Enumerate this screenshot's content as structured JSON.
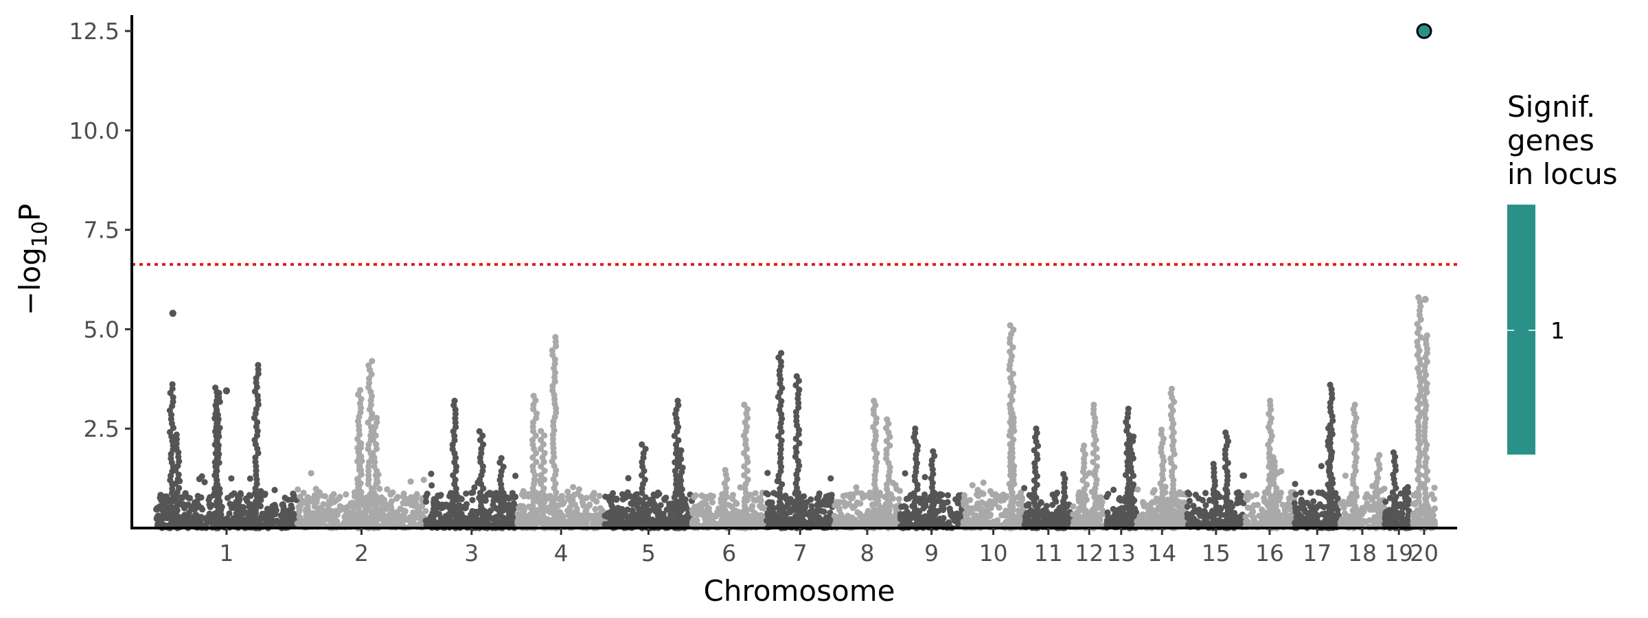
{
  "chart_data": {
    "type": "scatter",
    "subtype": "manhattan",
    "xlabel": "Chromosome",
    "ylabel": {
      "prefix": "−log",
      "subscript": "10",
      "suffix": "P"
    },
    "ylim": [
      0,
      12.9
    ],
    "y_ticks": [
      {
        "value": 2.5,
        "label": "2.5"
      },
      {
        "value": 5.0,
        "label": "5.0"
      },
      {
        "value": 7.5,
        "label": "7.5"
      },
      {
        "value": 10.0,
        "label": "10.0"
      },
      {
        "value": 12.5,
        "label": "12.5"
      }
    ],
    "significance_threshold": 6.63,
    "threshold_style": "dotted",
    "colors": {
      "dark": "#555555",
      "light": "#a9a9a9",
      "threshold": "#e41a1c",
      "highlight": "#2a9188",
      "axis": "#000000"
    },
    "chromosomes": [
      {
        "label": "1",
        "peak": 4.1,
        "color": "dark"
      },
      {
        "label": "2",
        "peak": 4.2,
        "color": "light"
      },
      {
        "label": "3",
        "peak": 3.2,
        "color": "dark"
      },
      {
        "label": "4",
        "peak": 4.8,
        "color": "light"
      },
      {
        "label": "5",
        "peak": 3.2,
        "color": "dark"
      },
      {
        "label": "6",
        "peak": 3.1,
        "color": "light"
      },
      {
        "label": "7",
        "peak": 4.4,
        "color": "dark"
      },
      {
        "label": "8",
        "peak": 3.2,
        "color": "light"
      },
      {
        "label": "9",
        "peak": 2.5,
        "color": "dark"
      },
      {
        "label": "10",
        "peak": 5.1,
        "color": "light"
      },
      {
        "label": "11",
        "peak": 2.5,
        "color": "dark"
      },
      {
        "label": "12",
        "peak": 3.1,
        "color": "light"
      },
      {
        "label": "13",
        "peak": 3.0,
        "color": "dark"
      },
      {
        "label": "14",
        "peak": 3.5,
        "color": "light"
      },
      {
        "label": "15",
        "peak": 2.4,
        "color": "dark"
      },
      {
        "label": "16",
        "peak": 3.2,
        "color": "light"
      },
      {
        "label": "17",
        "peak": 3.6,
        "color": "dark"
      },
      {
        "label": "18",
        "peak": 3.1,
        "color": "light"
      },
      {
        "label": "19",
        "peak": 1.9,
        "color": "dark"
      },
      {
        "label": "20",
        "peak": 5.8,
        "color": "light"
      }
    ],
    "notable_points": [
      {
        "chromosome": "1",
        "y": 5.4,
        "color": "dark"
      },
      {
        "chromosome": "1",
        "y": 3.45,
        "color": "dark"
      },
      {
        "chromosome": "20",
        "y": 5.75,
        "color": "light"
      }
    ],
    "highlighted_point": {
      "chromosome": "20",
      "y": 12.5,
      "signif_genes": 1
    },
    "legend": {
      "title_lines": [
        "Signif.",
        "genes",
        "in locus"
      ],
      "labels": [
        "1"
      ],
      "color": "#2a9188",
      "position": "right"
    }
  }
}
